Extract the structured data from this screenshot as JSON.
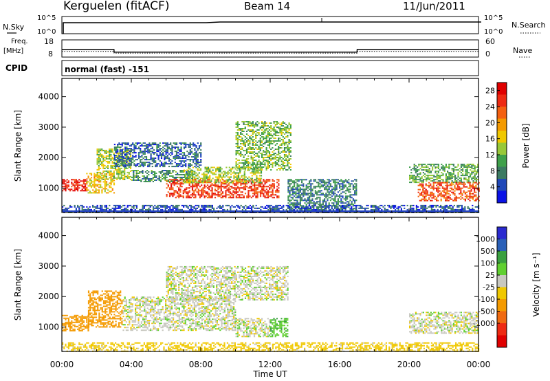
{
  "header": {
    "site": "Kerguelen (fitACF)",
    "beam": "Beam 14",
    "date": "11/Jun/2011"
  },
  "noise_panel": {
    "left_label": "N.Sky",
    "right_label": "N.Search",
    "ticks_left": [
      "10^5",
      "10^0"
    ],
    "ticks_right": [
      "10^5",
      "10^0"
    ]
  },
  "freq_panel": {
    "left_label_line1": "Freq.",
    "left_label_line2": "[MHz]",
    "right_label": "Nave",
    "ticks_left": [
      "18",
      "8"
    ],
    "ticks_right": [
      "60",
      "0"
    ],
    "freq_series_mhz": [
      {
        "t": 0,
        "v": 12.4
      },
      {
        "t": 3.0,
        "v": 12.4
      },
      {
        "t": 3.01,
        "v": 10.9
      },
      {
        "t": 17.0,
        "v": 10.9
      },
      {
        "t": 17.01,
        "v": 12.4
      },
      {
        "t": 24,
        "v": 12.4
      }
    ],
    "nave_series": [
      {
        "t": 0,
        "v": 20
      },
      {
        "t": 3.0,
        "v": 20
      },
      {
        "t": 3.01,
        "v": 14
      },
      {
        "t": 17.0,
        "v": 14
      },
      {
        "t": 17.01,
        "v": 20
      },
      {
        "t": 24,
        "v": 20
      }
    ]
  },
  "cpid": {
    "label": "CPID",
    "mode": "normal (fast) -151"
  },
  "chart_data": [
    {
      "type": "heatmap",
      "name": "Power",
      "ylabel": "Slant Range [km]",
      "yticks": [
        "1000",
        "2000",
        "3000",
        "4000"
      ],
      "ylim": [
        200,
        4600
      ],
      "xlim": [
        0,
        24
      ],
      "colorbar_label": "Power [dB]",
      "colorbar_ticks": [
        "4",
        "8",
        "12",
        "16",
        "20",
        "24",
        "28"
      ],
      "colorbar_colors": [
        "#0a12e6",
        "#2048b8",
        "#3c7a62",
        "#3fa04a",
        "#98c838",
        "#f0c800",
        "#f49a00",
        "#f46010",
        "#ee2a12",
        "#e00000"
      ],
      "colorbar_range": [
        0,
        30
      ],
      "regions": [
        {
          "t0": 0.0,
          "t1": 1.4,
          "r0": 900,
          "r1": 1300,
          "value": 27
        },
        {
          "t0": 1.4,
          "t1": 3.0,
          "r0": 850,
          "r1": 1500,
          "value": 18
        },
        {
          "t0": 2.0,
          "t1": 4.0,
          "r0": 1300,
          "r1": 2300,
          "value": 14
        },
        {
          "t0": 3.0,
          "t1": 8.0,
          "r0": 1700,
          "r1": 2500,
          "value": 6
        },
        {
          "t0": 4.0,
          "t1": 7.5,
          "r0": 1200,
          "r1": 1600,
          "value": 9
        },
        {
          "t0": 6.0,
          "t1": 12.5,
          "r0": 700,
          "r1": 1300,
          "value": 25
        },
        {
          "t0": 7.0,
          "t1": 11.5,
          "r0": 1200,
          "r1": 1700,
          "value": 14
        },
        {
          "t0": 10.0,
          "t1": 13.2,
          "r0": 1600,
          "r1": 3200,
          "value": 12
        },
        {
          "t0": 13.0,
          "t1": 17.0,
          "r0": 300,
          "r1": 1300,
          "value": 8
        },
        {
          "t0": 20.0,
          "t1": 24.0,
          "r0": 1200,
          "r1": 1800,
          "value": 11
        },
        {
          "t0": 20.5,
          "t1": 24.0,
          "r0": 600,
          "r1": 1200,
          "value": 24
        },
        {
          "t0": 0.0,
          "t1": 24.0,
          "r0": 200,
          "r1": 450,
          "value": 5
        }
      ]
    },
    {
      "type": "heatmap",
      "name": "Velocity",
      "ylabel": "Slant Range [km]",
      "yticks": [
        "1000",
        "2000",
        "3000",
        "4000"
      ],
      "ylim": [
        200,
        4600
      ],
      "xlim": [
        0,
        24
      ],
      "colorbar_label": "Velocity [m s⁻¹]",
      "colorbar_ticks": [
        "1000",
        "500",
        "100",
        "25",
        "-25",
        "-100",
        "-500",
        "-1000"
      ],
      "colorbar_colors": [
        "#2a2ad0",
        "#2a60b8",
        "#3aa040",
        "#60d030",
        "#c8c8c0",
        "#f0c800",
        "#f49a00",
        "#f06a10",
        "#ee2a12",
        "#e00000"
      ],
      "regions": [
        {
          "t0": 0.0,
          "t1": 1.5,
          "r0": 900,
          "r1": 1400,
          "value": -300
        },
        {
          "t0": 1.5,
          "t1": 3.5,
          "r0": 1000,
          "r1": 2200,
          "value": -400
        },
        {
          "t0": 3.5,
          "t1": 10.0,
          "r0": 900,
          "r1": 2000,
          "value": 0
        },
        {
          "t0": 6.0,
          "t1": 13.0,
          "r0": 1900,
          "r1": 3000,
          "value": 0
        },
        {
          "t0": 10.0,
          "t1": 12.0,
          "r0": 700,
          "r1": 1300,
          "value": 0
        },
        {
          "t0": 12.0,
          "t1": 13.0,
          "r0": 700,
          "r1": 1300,
          "value": 80
        },
        {
          "t0": 20.0,
          "t1": 24.0,
          "r0": 800,
          "r1": 1500,
          "value": 0
        },
        {
          "t0": 0.0,
          "t1": 24.0,
          "r0": 200,
          "r1": 500,
          "value": -60
        }
      ]
    }
  ],
  "time_axis": {
    "label": "Time UT",
    "ticks": [
      "00:00",
      "04:00",
      "08:00",
      "12:00",
      "16:00",
      "20:00",
      "00:00"
    ]
  }
}
